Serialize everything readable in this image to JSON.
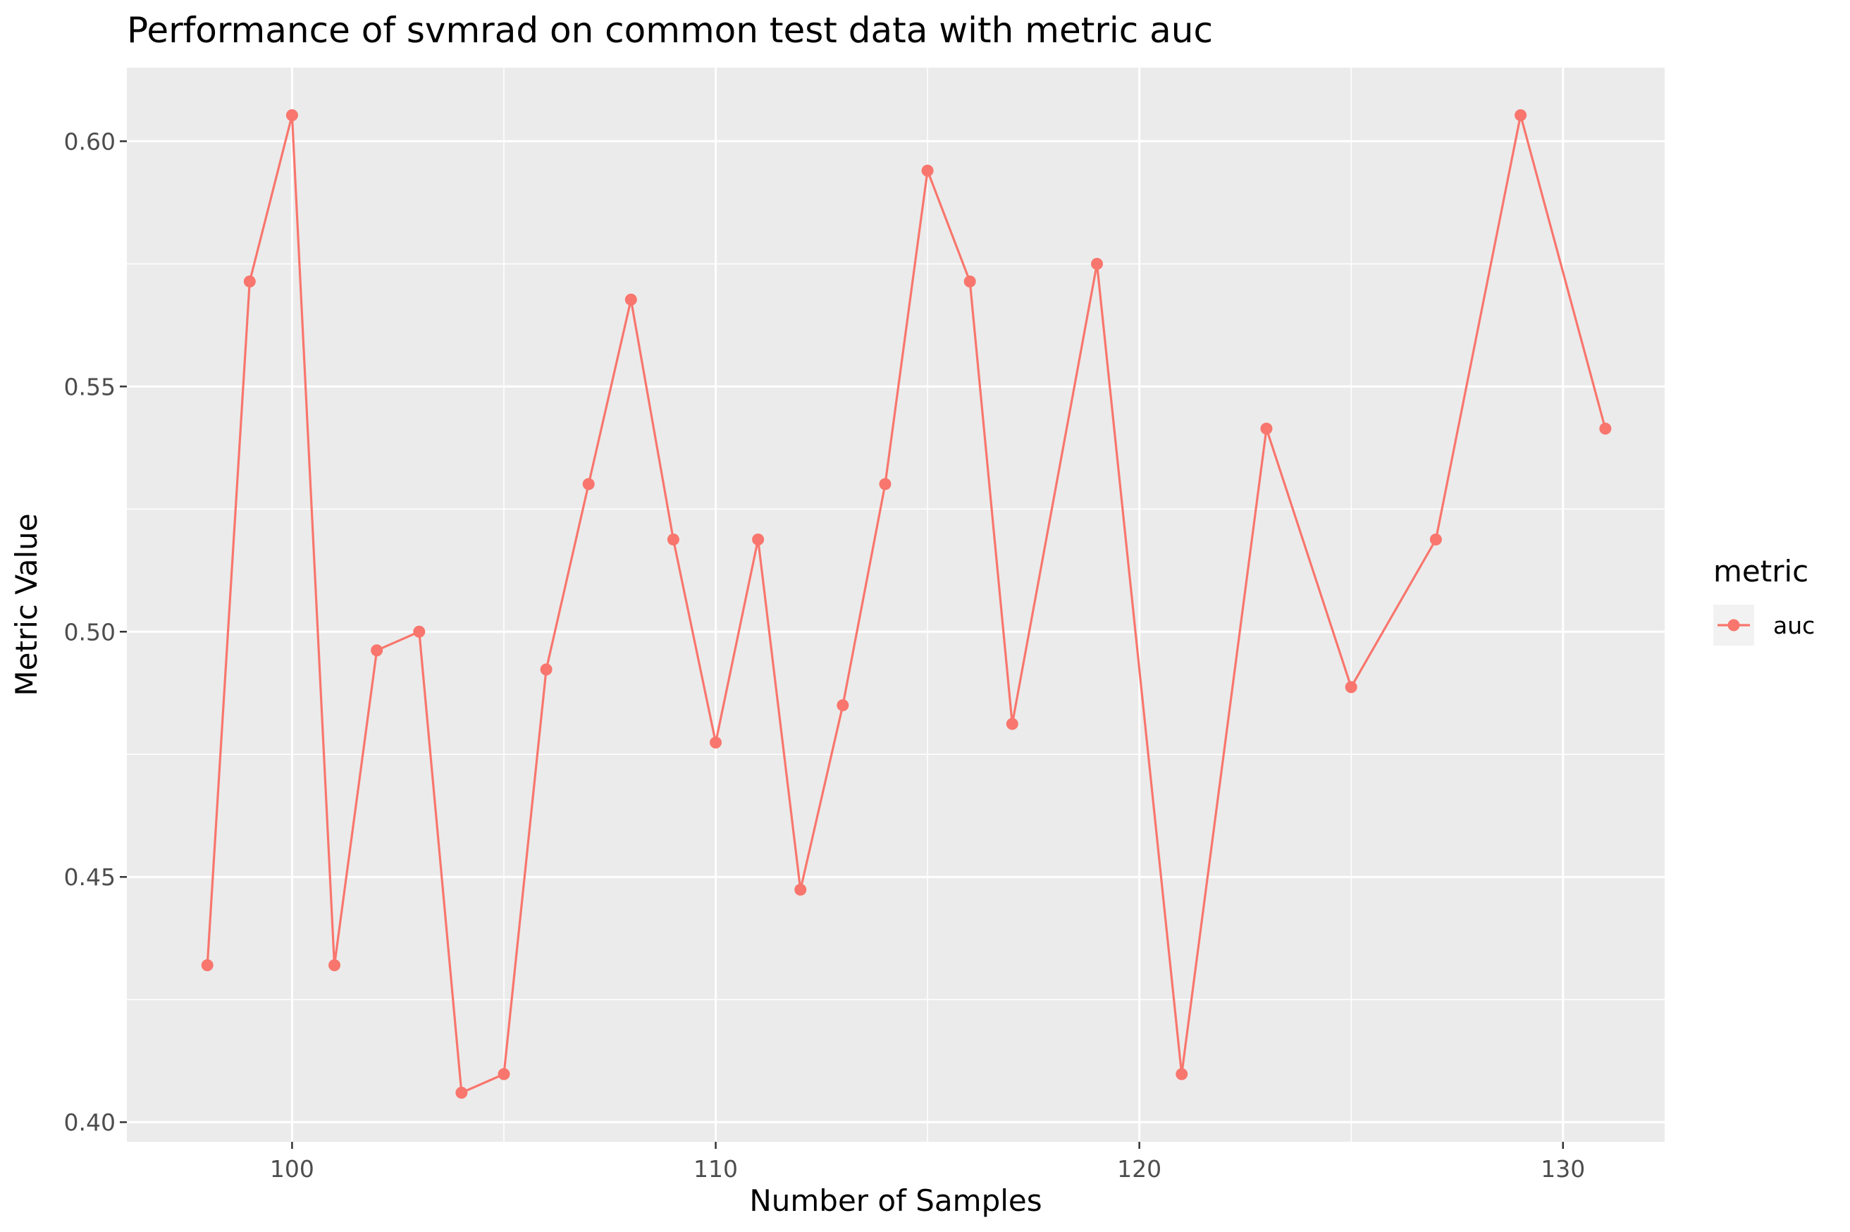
{
  "chart_data": {
    "type": "line",
    "title": "Performance of svmrad on common test data with metric auc",
    "xlabel": "Number of Samples",
    "ylabel": "Metric Value",
    "xlim": [
      96.1,
      132.4
    ],
    "ylim": [
      0.396,
      0.615
    ],
    "x_ticks": [
      100,
      110,
      120,
      130
    ],
    "x_tick_labels": [
      "100",
      "110",
      "120",
      "130"
    ],
    "y_ticks": [
      0.4,
      0.45,
      0.5,
      0.55,
      0.6
    ],
    "y_tick_labels": [
      "0.40",
      "0.45",
      "0.50",
      "0.55",
      "0.60"
    ],
    "grid": true,
    "legend": {
      "title": "metric",
      "position": "right",
      "entries": [
        {
          "label": "auc",
          "color": "#F8766D"
        }
      ]
    },
    "series": [
      {
        "name": "auc",
        "color": "#F8766D",
        "x": [
          98,
          99,
          100,
          101,
          102,
          103,
          104,
          105,
          106,
          107,
          108,
          109,
          110,
          111,
          112,
          113,
          114,
          115,
          116,
          117,
          119,
          121,
          123,
          125,
          127,
          129,
          131
        ],
        "values": [
          0.432,
          0.5714,
          0.6053,
          0.432,
          0.4962,
          0.5,
          0.406,
          0.4098,
          0.4923,
          0.5301,
          0.5677,
          0.5188,
          0.4774,
          0.5188,
          0.4474,
          0.485,
          0.5301,
          0.594,
          0.5714,
          0.4812,
          0.575,
          0.4098,
          0.5414,
          0.4887,
          0.5188,
          0.6053,
          0.5414
        ]
      }
    ]
  },
  "colors": {
    "panel_background": "#EBEBEB",
    "grid_major": "#FFFFFF",
    "series": "#F8766D",
    "text_dark": "#000000",
    "tick_text": "#4D4D4D"
  }
}
